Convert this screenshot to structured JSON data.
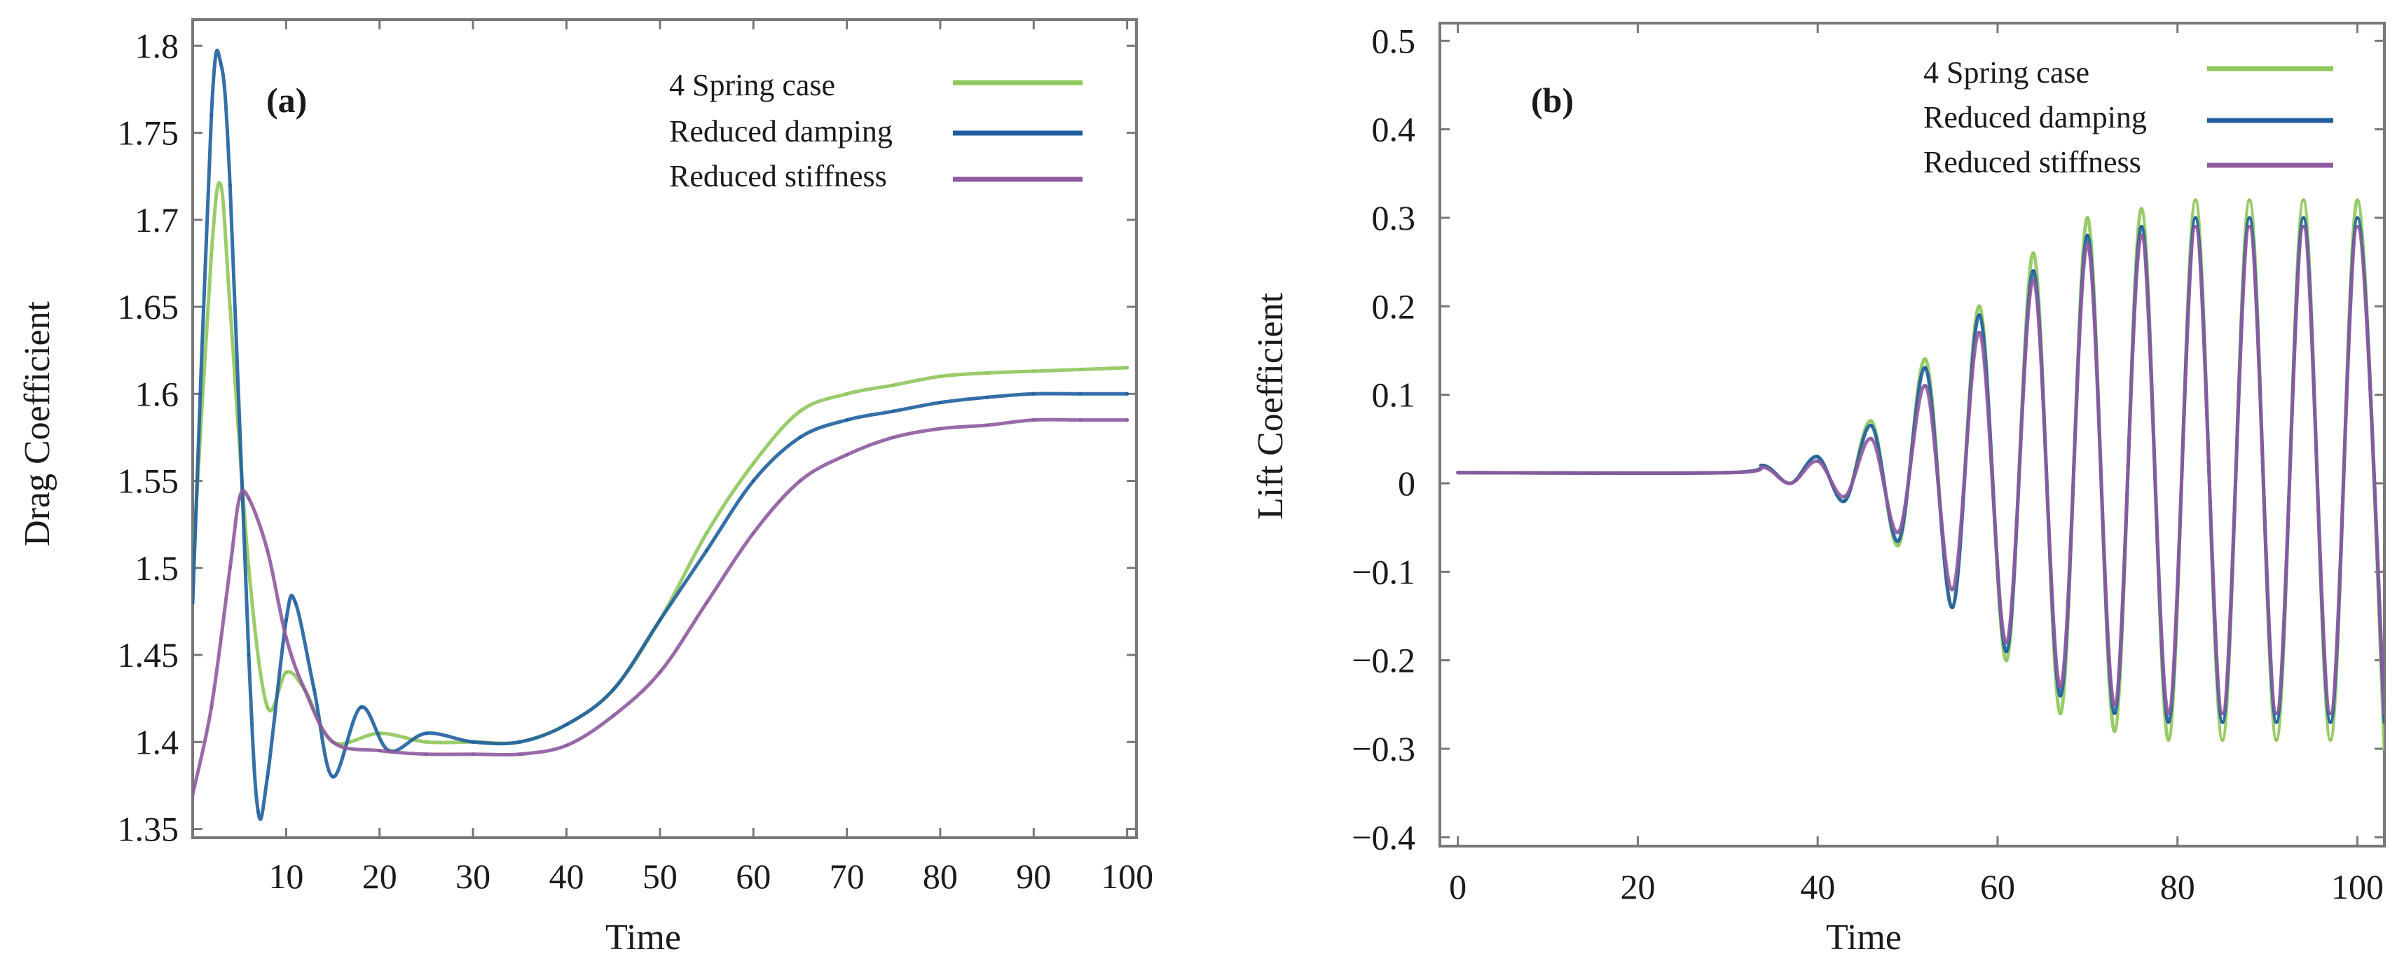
{
  "colors": {
    "spring": "#8fc65b",
    "damping": "#1f5f9e",
    "stiffness": "#8e5aa0",
    "axis": "#777777",
    "text": "#1a1a1a"
  },
  "chart_data": [
    {
      "type": "line",
      "panel_label": "(a)",
      "xlabel": "Time",
      "ylabel": "Drag Coefficient",
      "xlim": [
        0,
        101
      ],
      "ylim": [
        1.345,
        1.815
      ],
      "xticks": [
        10,
        20,
        30,
        40,
        50,
        60,
        70,
        80,
        90,
        100
      ],
      "xtick_labels": [
        "10",
        "20",
        "30",
        "40",
        "50",
        "60",
        "70",
        "80",
        "90",
        "100"
      ],
      "yticks": [
        1.35,
        1.4,
        1.45,
        1.5,
        1.55,
        1.6,
        1.65,
        1.7,
        1.75,
        1.8
      ],
      "ytick_labels": [
        "1.35",
        "1.4",
        "1.45",
        "1.5",
        "1.55",
        "1.6",
        "1.65",
        "1.7",
        "1.75",
        "1.8"
      ],
      "legend_position": "top-right",
      "series": [
        {
          "name": "4 Spring case",
          "color": "#8fc65b",
          "x": [
            0,
            2,
            3,
            4,
            6,
            8,
            10,
            12,
            15,
            20,
            25,
            30,
            35,
            40,
            45,
            50,
            55,
            60,
            65,
            70,
            75,
            80,
            85,
            90,
            95,
            100
          ],
          "values": [
            1.5,
            1.68,
            1.72,
            1.65,
            1.5,
            1.42,
            1.44,
            1.43,
            1.4,
            1.405,
            1.4,
            1.4,
            1.4,
            1.41,
            1.43,
            1.47,
            1.52,
            1.56,
            1.59,
            1.6,
            1.605,
            1.61,
            1.612,
            1.613,
            1.614,
            1.615
          ]
        },
        {
          "name": "Reduced damping",
          "color": "#1f5f9e",
          "x": [
            0,
            2,
            3,
            4,
            6,
            7,
            8,
            10,
            11,
            13,
            15,
            18,
            21,
            25,
            30,
            35,
            40,
            45,
            50,
            55,
            60,
            65,
            70,
            75,
            80,
            85,
            90,
            95,
            100
          ],
          "values": [
            1.48,
            1.76,
            1.79,
            1.72,
            1.45,
            1.36,
            1.38,
            1.47,
            1.48,
            1.43,
            1.38,
            1.42,
            1.395,
            1.405,
            1.4,
            1.4,
            1.41,
            1.43,
            1.47,
            1.51,
            1.55,
            1.575,
            1.585,
            1.59,
            1.595,
            1.598,
            1.6,
            1.6,
            1.6
          ]
        },
        {
          "name": "Reduced stiffness",
          "color": "#8e5aa0",
          "x": [
            0,
            2,
            4,
            5,
            6,
            8,
            10,
            12,
            15,
            20,
            25,
            30,
            35,
            40,
            45,
            50,
            55,
            60,
            65,
            70,
            75,
            80,
            85,
            90,
            95,
            100
          ],
          "values": [
            1.37,
            1.42,
            1.5,
            1.54,
            1.54,
            1.51,
            1.46,
            1.43,
            1.4,
            1.395,
            1.393,
            1.393,
            1.393,
            1.398,
            1.415,
            1.44,
            1.48,
            1.52,
            1.55,
            1.565,
            1.575,
            1.58,
            1.582,
            1.585,
            1.585,
            1.585
          ]
        }
      ]
    },
    {
      "type": "line",
      "panel_label": "(b)",
      "xlabel": "Time",
      "ylabel": "Lift Coefficient",
      "xlim": [
        -2,
        103
      ],
      "ylim": [
        -0.41,
        0.52
      ],
      "xticks": [
        0,
        20,
        40,
        60,
        80,
        100
      ],
      "xtick_labels": [
        "0",
        "20",
        "40",
        "60",
        "80",
        "100"
      ],
      "yticks": [
        0.5,
        0.4,
        0.3,
        0.2,
        0.1,
        0,
        -0.1,
        -0.2,
        -0.3,
        -0.4
      ],
      "ytick_labels": [
        "0.5",
        "0.4",
        "0.3",
        "0.2",
        "0.1",
        "0",
        "−0.1",
        "−0.2",
        "−0.3",
        "−0.4"
      ],
      "legend_position": "top-right",
      "series": [
        {
          "name": "4 Spring case",
          "color": "#8fc65b",
          "x": [
            0,
            30,
            34,
            37,
            40,
            43,
            46,
            49,
            52,
            55,
            58,
            61,
            64,
            67,
            70,
            73,
            76,
            79,
            82,
            85,
            88,
            91,
            94,
            97,
            100,
            103
          ],
          "values": [
            0.012,
            0.012,
            0.02,
            0.0,
            0.03,
            -0.02,
            0.07,
            -0.07,
            0.14,
            -0.14,
            0.2,
            -0.2,
            0.26,
            -0.26,
            0.3,
            -0.28,
            0.31,
            -0.29,
            0.32,
            -0.29,
            0.32,
            -0.29,
            0.32,
            -0.29,
            0.32,
            -0.3
          ]
        },
        {
          "name": "Reduced damping",
          "color": "#1f5f9e",
          "x": [
            0,
            30,
            34,
            37,
            40,
            43,
            46,
            49,
            52,
            55,
            58,
            61,
            64,
            67,
            70,
            73,
            76,
            79,
            82,
            85,
            88,
            91,
            94,
            97,
            100,
            103
          ],
          "values": [
            0.012,
            0.012,
            0.02,
            0.0,
            0.03,
            -0.02,
            0.065,
            -0.065,
            0.13,
            -0.14,
            0.19,
            -0.19,
            0.24,
            -0.24,
            0.28,
            -0.26,
            0.29,
            -0.27,
            0.3,
            -0.27,
            0.3,
            -0.27,
            0.3,
            -0.27,
            0.3,
            -0.27
          ]
        },
        {
          "name": "Reduced stiffness",
          "color": "#8e5aa0",
          "x": [
            0,
            30,
            34,
            37,
            40,
            43,
            46,
            49,
            52,
            55,
            58,
            61,
            64,
            67,
            70,
            73,
            76,
            79,
            82,
            85,
            88,
            91,
            94,
            97,
            100,
            103
          ],
          "values": [
            0.012,
            0.012,
            0.018,
            0.0,
            0.025,
            -0.015,
            0.05,
            -0.055,
            0.11,
            -0.12,
            0.17,
            -0.18,
            0.23,
            -0.23,
            0.27,
            -0.25,
            0.28,
            -0.26,
            0.29,
            -0.26,
            0.29,
            -0.26,
            0.29,
            -0.26,
            0.29,
            -0.26
          ]
        }
      ]
    }
  ]
}
